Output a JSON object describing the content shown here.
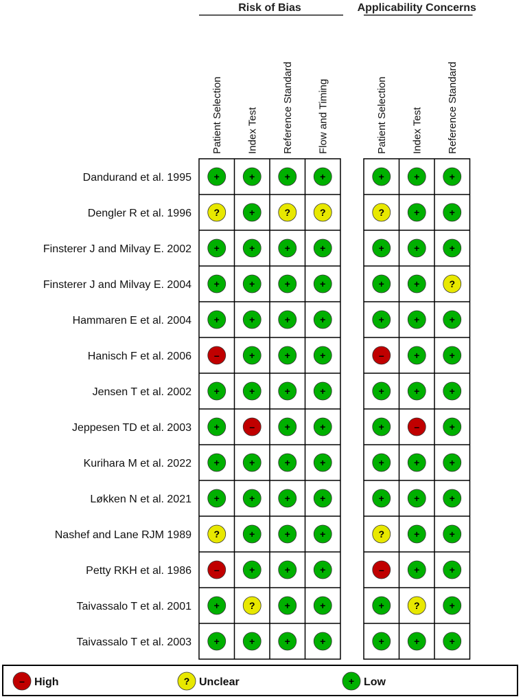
{
  "chart_data": {
    "type": "table",
    "groups": [
      {
        "title": "Risk of Bias",
        "domains": [
          "Patient Selection",
          "Index Test",
          "Reference Standard",
          "Flow and Timing"
        ]
      },
      {
        "title": "Applicability Concerns",
        "domains": [
          "Patient Selection",
          "Index Test",
          "Reference Standard"
        ]
      }
    ],
    "studies": [
      {
        "name": "Dandurand et al. 1995",
        "risk": [
          "low",
          "low",
          "low",
          "low"
        ],
        "applicability": [
          "low",
          "low",
          "low"
        ]
      },
      {
        "name": "Dengler R et al. 1996",
        "risk": [
          "unclear",
          "low",
          "unclear",
          "unclear"
        ],
        "applicability": [
          "unclear",
          "low",
          "low"
        ]
      },
      {
        "name": "Finsterer J and Milvay E. 2002",
        "risk": [
          "low",
          "low",
          "low",
          "low"
        ],
        "applicability": [
          "low",
          "low",
          "low"
        ]
      },
      {
        "name": "Finsterer J and Milvay E. 2004",
        "risk": [
          "low",
          "low",
          "low",
          "low"
        ],
        "applicability": [
          "low",
          "low",
          "unclear"
        ]
      },
      {
        "name": "Hammaren E et al. 2004",
        "risk": [
          "low",
          "low",
          "low",
          "low"
        ],
        "applicability": [
          "low",
          "low",
          "low"
        ]
      },
      {
        "name": "Hanisch F et al. 2006",
        "risk": [
          "high",
          "low",
          "low",
          "low"
        ],
        "applicability": [
          "high",
          "low",
          "low"
        ]
      },
      {
        "name": "Jensen T et al. 2002",
        "risk": [
          "low",
          "low",
          "low",
          "low"
        ],
        "applicability": [
          "low",
          "low",
          "low"
        ]
      },
      {
        "name": "Jeppesen TD et al. 2003",
        "risk": [
          "low",
          "high",
          "low",
          "low"
        ],
        "applicability": [
          "low",
          "high",
          "low"
        ]
      },
      {
        "name": "Kurihara M et al. 2022",
        "risk": [
          "low",
          "low",
          "low",
          "low"
        ],
        "applicability": [
          "low",
          "low",
          "low"
        ]
      },
      {
        "name": "Løkken N et al. 2021",
        "risk": [
          "low",
          "low",
          "low",
          "low"
        ],
        "applicability": [
          "low",
          "low",
          "low"
        ]
      },
      {
        "name": "Nashef and Lane RJM 1989",
        "risk": [
          "unclear",
          "low",
          "low",
          "low"
        ],
        "applicability": [
          "unclear",
          "low",
          "low"
        ]
      },
      {
        "name": "Petty RKH et al. 1986",
        "risk": [
          "high",
          "low",
          "low",
          "low"
        ],
        "applicability": [
          "high",
          "low",
          "low"
        ]
      },
      {
        "name": "Taivassalo T et al. 2001",
        "risk": [
          "low",
          "unclear",
          "low",
          "low"
        ],
        "applicability": [
          "low",
          "unclear",
          "low"
        ]
      },
      {
        "name": "Taivassalo T et al. 2003",
        "risk": [
          "low",
          "low",
          "low",
          "low"
        ],
        "applicability": [
          "low",
          "low",
          "low"
        ]
      }
    ],
    "legend": [
      {
        "key": "high",
        "label": "High"
      },
      {
        "key": "unclear",
        "label": "Unclear"
      },
      {
        "key": "low",
        "label": "Low"
      }
    ],
    "colors": {
      "high": "#c00000",
      "unclear": "#e8e800",
      "low": "#00b000"
    },
    "symbols": {
      "high": "–",
      "unclear": "?",
      "low": "+"
    }
  }
}
